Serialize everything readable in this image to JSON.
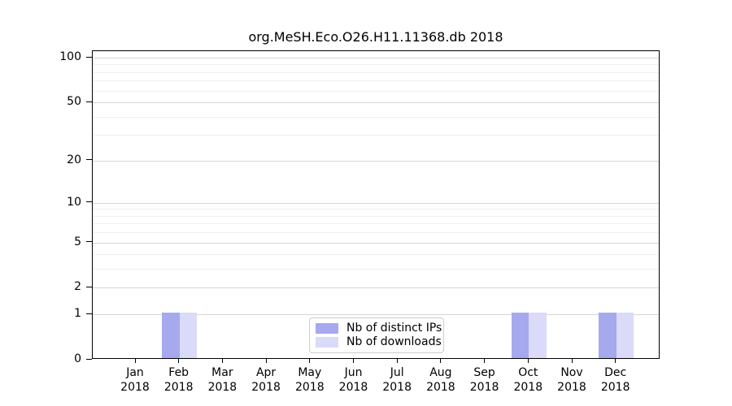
{
  "figure": {
    "background": "#ffffff"
  },
  "chart_data": {
    "type": "bar",
    "title": "org.MeSH.Eco.O26.H11.11368.db 2018",
    "categories": [
      "Jan",
      "Feb",
      "Mar",
      "Apr",
      "May",
      "Jun",
      "Jul",
      "Aug",
      "Sep",
      "Oct",
      "Nov",
      "Dec"
    ],
    "year_label": "2018",
    "series": [
      {
        "name": "Nb of distinct IPs",
        "color": "#a7a9ee",
        "values": [
          0,
          1,
          0,
          0,
          0,
          0,
          0,
          0,
          0,
          1,
          0,
          1
        ]
      },
      {
        "name": "Nb of downloads",
        "color": "#d9dbf8",
        "values": [
          0,
          1,
          0,
          0,
          0,
          0,
          0,
          0,
          0,
          1,
          0,
          1
        ]
      }
    ],
    "xlabel": "",
    "ylabel": "",
    "y_axis": {
      "scale": "log10(1+y)",
      "major_ticks": [
        0,
        1,
        2,
        5,
        10,
        20,
        50,
        100
      ],
      "minor_ticks": [
        3,
        4,
        6,
        7,
        8,
        9,
        30,
        40,
        60,
        70,
        80,
        90
      ],
      "max_value": 110.5
    },
    "legend": {
      "position": "bottom-center"
    },
    "grid": true,
    "colors": {
      "major_gridline": "#d6d6d6",
      "minor_gridline": "#f0f0f0",
      "axis": "#000000",
      "legend_border": "#cccccc"
    }
  }
}
